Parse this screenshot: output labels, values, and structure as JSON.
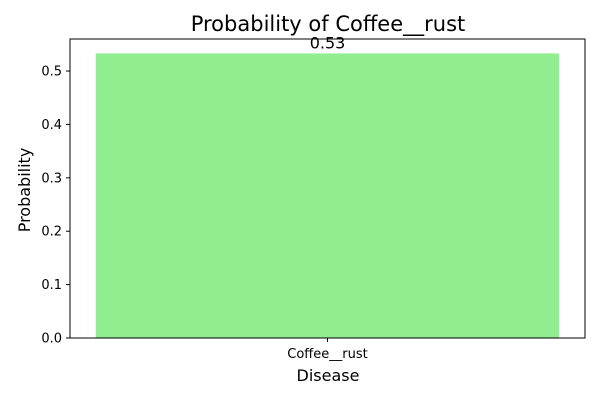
{
  "chart_data": {
    "type": "bar",
    "title": "Probability of Coffee__rust",
    "xlabel": "Disease",
    "ylabel": "Probability",
    "categories": [
      "Coffee__rust"
    ],
    "values": [
      0.533
    ],
    "data_labels": [
      "0.53"
    ],
    "ylim": [
      0,
      0.56
    ],
    "yticks": [
      0.0,
      0.1,
      0.2,
      0.3,
      0.4,
      0.5
    ],
    "ytick_labels": [
      "0.0",
      "0.1",
      "0.2",
      "0.3",
      "0.4",
      "0.5"
    ],
    "bar_color": "#90ee90",
    "grid": false,
    "legend": "none"
  }
}
